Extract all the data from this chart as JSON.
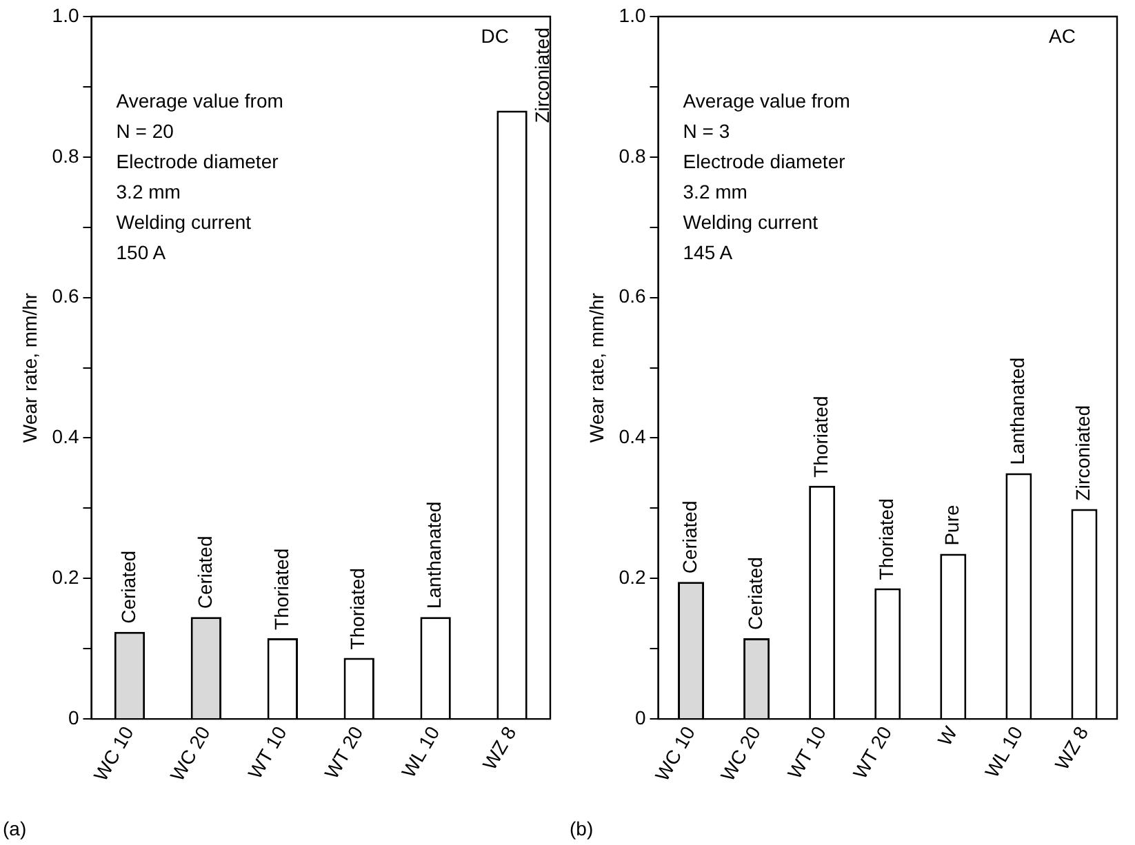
{
  "chart_data": [
    {
      "type": "bar",
      "ylabel": "Wear rate, mm/hr",
      "categories": [
        "WC 10",
        "WC 20",
        "WT 10",
        "WT 20",
        "WL 10",
        "WZ 8"
      ],
      "values": [
        0.124,
        0.145,
        0.115,
        0.087,
        0.145,
        0.866
      ],
      "colors": [
        "#d9d9d9",
        "#d9d9d9",
        "#ffffff",
        "#ffffff",
        "#ffffff",
        "#ffffff"
      ],
      "ylim": [
        0,
        1.0
      ],
      "yticks": [
        0,
        {
          "value": 0.1,
          "label": null
        },
        0.2,
        {
          "value": 0.3,
          "label": null
        },
        0.4,
        {
          "value": 0.5,
          "label": null
        },
        0.6,
        {
          "value": 0.7,
          "label": null
        },
        0.8,
        {
          "value": 0.9,
          "label": null
        },
        {
          "value": 1.0,
          "label": "1.0"
        }
      ],
      "grid": false,
      "legend": false,
      "annotations": [
        "DC",
        "Average value from\nN = 20\nElectrode diameter\n3.2 mm\nWelding current\n150 A",
        "(a)",
        {
          "text": "Ceriated",
          "x": "WC 10",
          "y": 0.124
        },
        {
          "text": "Ceriated",
          "x": "WC 20",
          "y": 0.145
        },
        {
          "text": "Thoriated",
          "x": "WT 10",
          "y": 0.115
        },
        {
          "text": "Thoriated",
          "x": "WT 20",
          "y": 0.087
        },
        {
          "text": "Lanthanated",
          "x": "WL 10",
          "y": 0.145
        },
        {
          "text": "Zirconiated",
          "x": "WZ 8",
          "y": 0.866
        }
      ]
    },
    {
      "type": "bar",
      "ylabel": "Wear rate, mm/hr",
      "categories": [
        "WC 10",
        "WC 20",
        "WT 10",
        "WT 20",
        "W",
        "WL 10",
        "WZ 8"
      ],
      "values": [
        0.195,
        0.115,
        0.332,
        0.186,
        0.235,
        0.35,
        0.299
      ],
      "colors": [
        "#d9d9d9",
        "#d9d9d9",
        "#ffffff",
        "#ffffff",
        "#ffffff",
        "#ffffff",
        "#ffffff"
      ],
      "ylim": [
        0,
        1.0
      ],
      "yticks": [
        0,
        {
          "value": 0.1,
          "label": null
        },
        0.2,
        {
          "value": 0.3,
          "label": null
        },
        0.4,
        {
          "value": 0.5,
          "label": null
        },
        0.6,
        {
          "value": 0.7,
          "label": null
        },
        0.8,
        {
          "value": 0.9,
          "label": null
        },
        {
          "value": 1.0,
          "label": "1.0"
        }
      ],
      "grid": false,
      "legend": false,
      "annotations": [
        "AC",
        "Average value from\nN = 3\nElectrode diameter\n3.2 mm\nWelding current\n145 A",
        "(b)",
        {
          "text": "Ceriated",
          "x": "WC 10",
          "y": 0.195
        },
        {
          "text": "Ceriated",
          "x": "WC 20",
          "y": 0.115
        },
        {
          "text": "Thoriated",
          "x": "WT 10",
          "y": 0.332
        },
        {
          "text": "Thoriated",
          "x": "WT 20",
          "y": 0.186
        },
        {
          "text": "Pure",
          "x": "W",
          "y": 0.235
        },
        {
          "text": "Lanthanated",
          "x": "WL 10",
          "y": 0.35
        },
        {
          "text": "Zirconiated",
          "x": "WZ 8",
          "y": 0.299
        }
      ]
    }
  ]
}
